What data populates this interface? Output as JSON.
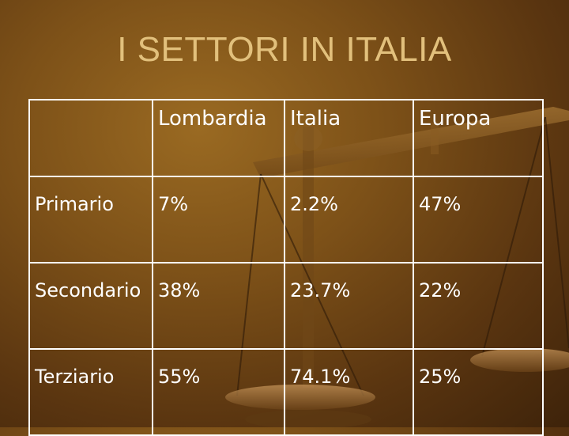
{
  "slide": {
    "title": "I SETTORI IN ITALIA",
    "table": {
      "columns": [
        "",
        "Lombardia",
        "Italia",
        "Europa"
      ],
      "rows": [
        {
          "sector": "Primario",
          "values": [
            "7%",
            "2.2%",
            "47%"
          ]
        },
        {
          "sector": "Secondario",
          "values": [
            "38%",
            "23.7%",
            "22%"
          ]
        },
        {
          "sector": "Terziario",
          "values": [
            "55%",
            "74.1%",
            "25%"
          ]
        }
      ]
    }
  },
  "colors": {
    "background": "#7d5118",
    "title": "#e2c07c",
    "text": "#ffffff",
    "border": "#ffffff"
  },
  "decor": {
    "background_image": "balance-scale-icon"
  }
}
